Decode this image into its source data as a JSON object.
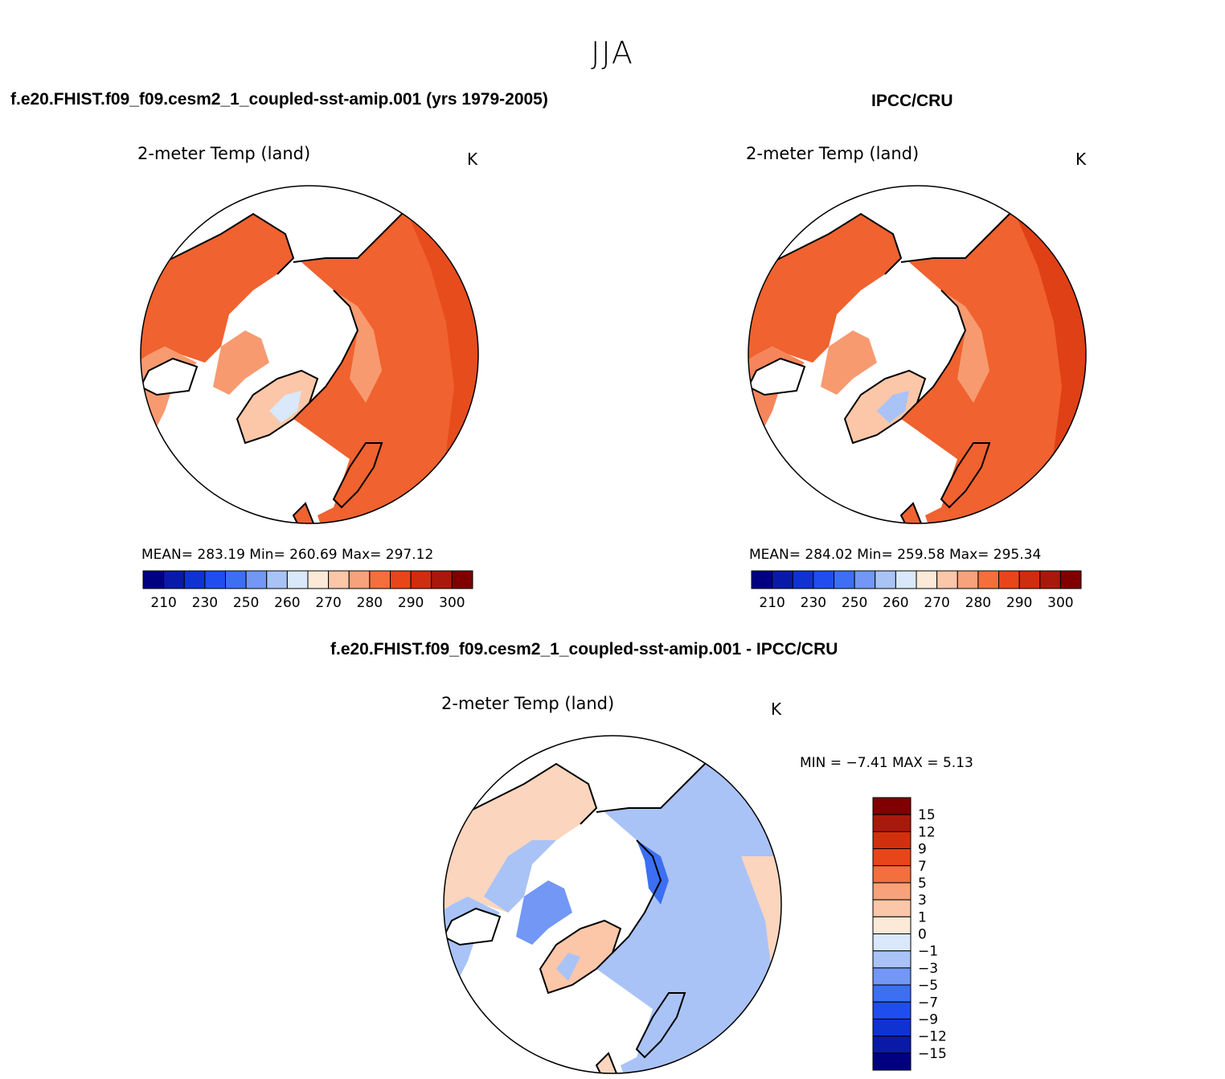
{
  "season": "JJA",
  "colors": {
    "ocean": "#ffffff",
    "coast": "#000000"
  },
  "panels": [
    {
      "id": "model",
      "case": "f.e20.FHIST.f09_f09.cesm2_1_coupled-sst-amip.001 (yrs 1979-2005)",
      "variable": "2-meter Temp (land)",
      "units": "K",
      "stats": "MEAN=  283.19   Min=  260.69   Max=  297.12"
    },
    {
      "id": "obs",
      "case": "IPCC/CRU",
      "variable": "2-meter Temp (land)",
      "units": "K",
      "stats": "MEAN=  284.02   Min=  259.58   Max=  295.34"
    },
    {
      "id": "diff",
      "case": "f.e20.FHIST.f09_f09.cesm2_1_coupled-sst-amip.001 - IPCC/CRU",
      "variable": "2-meter Temp (land)",
      "units": "K",
      "stats": "MIN =   −7.41  MAX =     5.13"
    }
  ],
  "colorbar_abs": {
    "colors": [
      "#000080",
      "#0a1aa8",
      "#0f33d1",
      "#1f4df0",
      "#3c6ff2",
      "#7297f5",
      "#a9c3f7",
      "#d9e8fa",
      "#fde9d8",
      "#fbc7a8",
      "#f7a27a",
      "#f36f3c",
      "#e9451a",
      "#cf2d0f",
      "#a9190b",
      "#800000"
    ],
    "labels": [
      "210",
      "230",
      "250",
      "260",
      "270",
      "280",
      "290",
      "300"
    ]
  },
  "colorbar_diff": {
    "colors": [
      "#800000",
      "#a9190b",
      "#d1300e",
      "#e9451a",
      "#f36f3c",
      "#f7a27a",
      "#fbc7a8",
      "#fde9d8",
      "#d9e8fa",
      "#a9c3f7",
      "#7297f5",
      "#3c6ff2",
      "#1f4df0",
      "#0f33d1",
      "#0a1aa8",
      "#000080"
    ],
    "labels": [
      "15",
      "12",
      "9",
      "7",
      "5",
      "3",
      "1",
      "0",
      "−1",
      "−3",
      "−5",
      "−7",
      "−9",
      "−12",
      "−15"
    ]
  }
}
